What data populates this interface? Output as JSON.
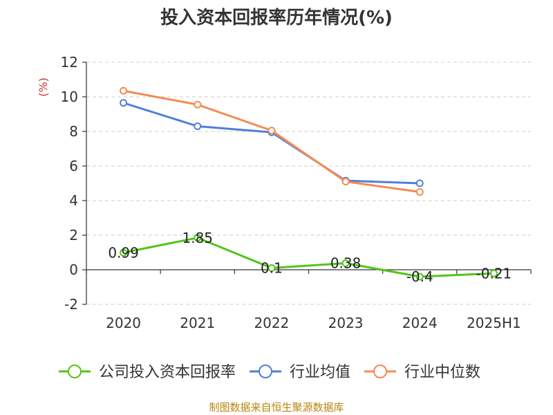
{
  "chart_data": {
    "type": "line",
    "title": "投入资本回报率历年情况(%)",
    "ylabel": "(%)",
    "ylim": [
      -2,
      12
    ],
    "yticks": [
      "-2",
      "0",
      "2",
      "4",
      "6",
      "8",
      "10",
      "12"
    ],
    "categories": [
      "2020",
      "2021",
      "2022",
      "2023",
      "2024",
      "2025H1"
    ],
    "grid": true,
    "legend_position": "bottom",
    "series": [
      {
        "name": "公司投入资本回报率",
        "color": "#52c41a",
        "values": [
          0.99,
          1.85,
          0.1,
          0.38,
          -0.4,
          -0.21
        ],
        "labels": [
          "0.99",
          "1.85",
          "0.1",
          "0.38",
          "-0.4",
          "-0.21"
        ]
      },
      {
        "name": "行业均值",
        "color": "#4f7fd9",
        "values": [
          9.65,
          8.3,
          7.95,
          5.15,
          5.0,
          null
        ]
      },
      {
        "name": "行业中位数",
        "color": "#f58a52",
        "values": [
          10.35,
          9.55,
          8.05,
          5.1,
          4.5,
          null
        ]
      }
    ]
  },
  "source": "制图数据来自恒生聚源数据库"
}
